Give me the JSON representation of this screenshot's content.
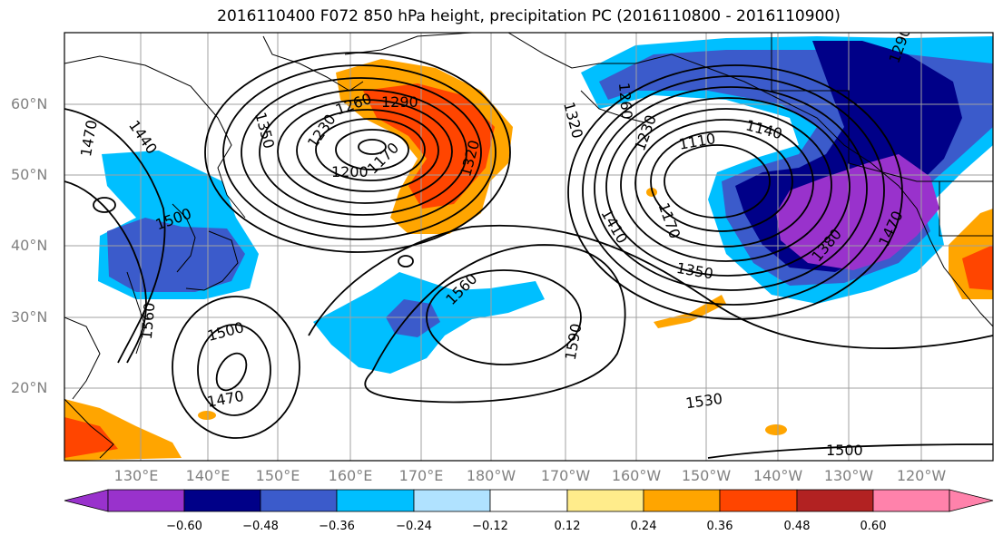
{
  "title": "2016110400 F072 850 hPa height, precipitation PC (2016110800 - 2016110900)",
  "map": {
    "lat_labels": [
      "60°N",
      "50°N",
      "40°N",
      "30°N",
      "20°N"
    ],
    "lon_labels": [
      "130°E",
      "140°E",
      "150°E",
      "160°E",
      "170°E",
      "180°W",
      "170°W",
      "160°W",
      "150°W",
      "140°W",
      "130°W",
      "120°W"
    ],
    "contour_labels": [
      "1470",
      "1440",
      "1350",
      "1230",
      "1260",
      "1290",
      "1200",
      "1170",
      "1320",
      "1500",
      "1470",
      "1560",
      "1560",
      "1500",
      "1470",
      "1590",
      "1410",
      "1320",
      "1260",
      "1230",
      "1110",
      "1140",
      "1170",
      "1380",
      "1350",
      "1470",
      "1530",
      "1500",
      "1290"
    ]
  },
  "colorbar": {
    "ticks": [
      "−0.60",
      "−0.48",
      "−0.36",
      "−0.24",
      "−0.12",
      "0.12",
      "0.24",
      "0.36",
      "0.48",
      "0.60"
    ],
    "colors": [
      "#9932cc",
      "#000088",
      "#3b5bcb",
      "#00bfff",
      "#b0e2ff",
      "#ffffff",
      "#ffec8b",
      "#ffa500",
      "#ff4500",
      "#b22222",
      "#ff82ab"
    ]
  }
}
